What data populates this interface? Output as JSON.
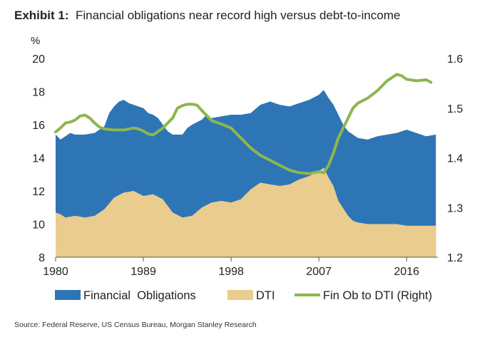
{
  "header": {
    "exhibit_label": "Exhibit 1:",
    "title_text": "Financial obligations near record high versus debt-to-income"
  },
  "footer": {
    "source": "Source: Federal Reserve, US Census Bureau, Morgan Stanley Research"
  },
  "chart_data": {
    "type": "area",
    "title": "Financial obligations near record high versus debt-to-income",
    "ylabel_left": "%",
    "x_ticks": [
      "1980",
      "1989",
      "1998",
      "2007",
      "2016"
    ],
    "y_left_ticks": [
      "8",
      "10",
      "12",
      "14",
      "16",
      "18",
      "20"
    ],
    "y_right_ticks": [
      "1.2",
      "1.3",
      "1.4",
      "1.5",
      "1.6"
    ],
    "xlim": [
      1980,
      2019.2
    ],
    "ylim_left": [
      8,
      20
    ],
    "ylim_right": [
      1.2,
      1.6
    ],
    "legend_position": "bottom",
    "colors": {
      "financial_obligations": "#2e75b6",
      "dti": "#e9cc8e",
      "fin_ob_to_dti": "#8db64f"
    },
    "series": [
      {
        "name": "Financial  Obligations",
        "axis": "left",
        "type": "area",
        "x": [
          1980,
          1980.5,
          1981,
          1981.5,
          1982,
          1982.5,
          1983,
          1984,
          1985,
          1985.5,
          1986,
          1986.5,
          1987,
          1987.5,
          1988,
          1989,
          1989.5,
          1990,
          1990.5,
          1991,
          1991.5,
          1992,
          1993,
          1993.5,
          1994,
          1995,
          1995.5,
          1996,
          1997,
          1998,
          1999,
          2000,
          2001,
          2002,
          2003,
          2004,
          2005,
          2006,
          2007,
          2007.5,
          2008,
          2008.5,
          2009,
          2009.5,
          2010,
          2011,
          2012,
          2013,
          2014,
          2015,
          2016,
          2017,
          2018,
          2019
        ],
        "values": [
          15.4,
          15.1,
          15.3,
          15.5,
          15.4,
          15.4,
          15.4,
          15.5,
          15.9,
          16.7,
          17.1,
          17.4,
          17.5,
          17.3,
          17.2,
          17.0,
          16.7,
          16.6,
          16.4,
          16.0,
          15.6,
          15.4,
          15.4,
          15.8,
          16.0,
          16.3,
          16.6,
          16.4,
          16.5,
          16.6,
          16.6,
          16.7,
          17.2,
          17.4,
          17.2,
          17.1,
          17.3,
          17.5,
          17.8,
          18.1,
          17.6,
          17.2,
          16.6,
          16.0,
          15.6,
          15.2,
          15.1,
          15.3,
          15.4,
          15.5,
          15.7,
          15.5,
          15.3,
          15.4
        ]
      },
      {
        "name": "DTI",
        "axis": "left",
        "type": "area",
        "x": [
          1980,
          1980.5,
          1981,
          1982,
          1983,
          1984,
          1985,
          1986,
          1987,
          1988,
          1989,
          1990,
          1991,
          1992,
          1993,
          1994,
          1995,
          1996,
          1997,
          1998,
          1999,
          2000,
          2001,
          2002,
          2003,
          2004,
          2005,
          2006,
          2007,
          2007.5,
          2008,
          2008.5,
          2009,
          2010,
          2010.5,
          2011,
          2012,
          2013,
          2014,
          2015,
          2016,
          2017,
          2018,
          2019
        ],
        "values": [
          10.7,
          10.6,
          10.4,
          10.5,
          10.4,
          10.5,
          10.9,
          11.6,
          11.9,
          12.0,
          11.7,
          11.8,
          11.5,
          10.7,
          10.4,
          10.5,
          11.0,
          11.3,
          11.4,
          11.3,
          11.5,
          12.1,
          12.5,
          12.4,
          12.3,
          12.4,
          12.7,
          12.9,
          13.2,
          13.4,
          12.8,
          12.3,
          11.4,
          10.5,
          10.2,
          10.1,
          10.0,
          10.0,
          10.0,
          10.0,
          9.9,
          9.9,
          9.9,
          9.9
        ]
      },
      {
        "name": "Fin Ob to DTI (Right)",
        "axis": "right",
        "type": "line",
        "x": [
          1980,
          1980.5,
          1981,
          1981.5,
          1982,
          1982.5,
          1983,
          1983.5,
          1984,
          1984.5,
          1985,
          1986,
          1987,
          1988,
          1988.5,
          1989,
          1989.5,
          1990,
          1991,
          1992,
          1992.5,
          1993,
          1993.5,
          1994,
          1994.5,
          1995,
          1996,
          1997,
          1998,
          1999,
          2000,
          2001,
          2002,
          2003,
          2004,
          2005,
          2006,
          2007,
          2007.5,
          2008,
          2008.5,
          2009,
          2010,
          2010.5,
          2011,
          2012,
          2013,
          2014,
          2015,
          2015.5,
          2016,
          2017,
          2018,
          2018.5
        ],
        "values": [
          1.452,
          1.46,
          1.47,
          1.472,
          1.476,
          1.484,
          1.486,
          1.48,
          1.47,
          1.462,
          1.458,
          1.456,
          1.456,
          1.46,
          1.458,
          1.454,
          1.448,
          1.446,
          1.46,
          1.48,
          1.5,
          1.505,
          1.508,
          1.508,
          1.506,
          1.495,
          1.475,
          1.468,
          1.46,
          1.44,
          1.42,
          1.405,
          1.395,
          1.385,
          1.375,
          1.37,
          1.368,
          1.372,
          1.37,
          1.385,
          1.41,
          1.44,
          1.48,
          1.5,
          1.51,
          1.52,
          1.535,
          1.555,
          1.568,
          1.565,
          1.558,
          1.555,
          1.557,
          1.552
        ]
      }
    ]
  }
}
